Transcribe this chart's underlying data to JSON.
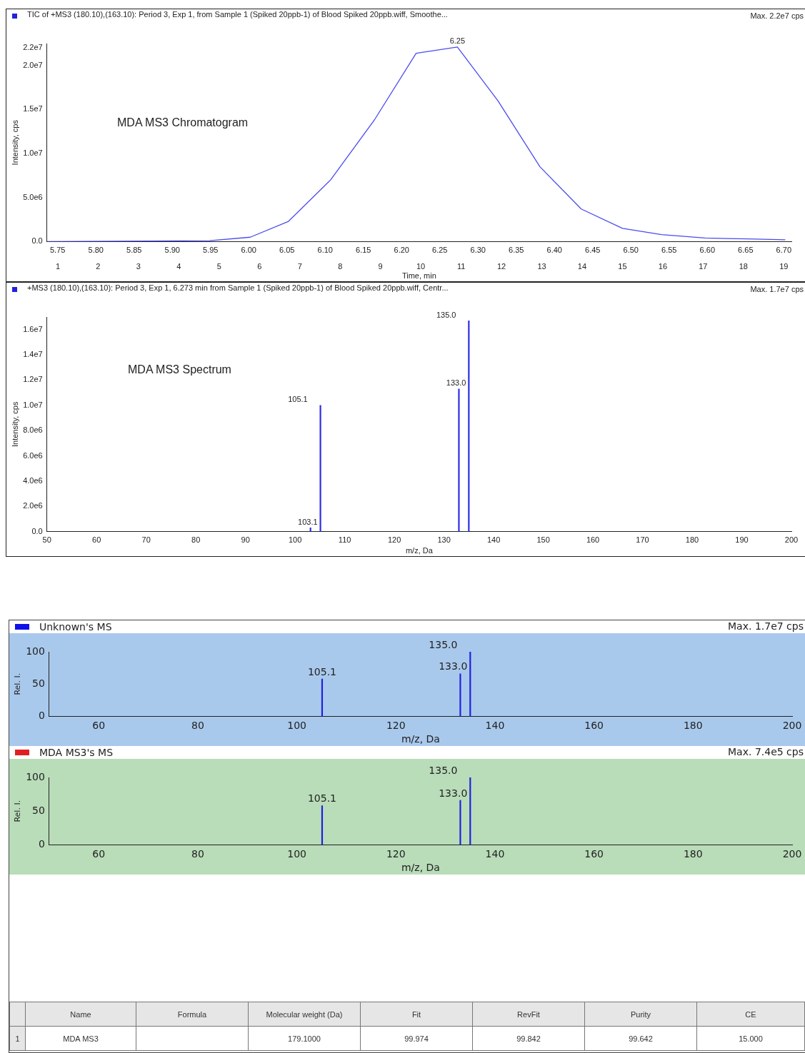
{
  "chart_data": [
    {
      "type": "line",
      "title": "TIC of +MS3 (180.10),(163.10): Period 3, Exp 1, from Sample 1 (Spiked 20ppb-1) of Blood Spiked 20ppb.wiff, Smoothe...",
      "xlabel": "Time, min",
      "ylabel": "Intensity, cps",
      "annotations": [
        "MDA MS3 Chromatogram",
        "Max. 2.2e7 cps",
        {
          "text": "6.25",
          "x": 6.273,
          "y": 22100000
        }
      ],
      "x": [
        5.736,
        5.949,
        6.002,
        6.052,
        6.107,
        6.165,
        6.219,
        6.273,
        6.326,
        6.381,
        6.435,
        6.489,
        6.54,
        6.597,
        6.653,
        6.702
      ],
      "values": [
        0,
        100000,
        500000,
        2300000,
        7000000,
        13900000,
        21400000,
        22100000,
        16000000,
        8500000,
        3700000,
        1500000,
        800000,
        400000,
        300000,
        200000
      ],
      "color": "#4b4bf0",
      "marker": "none",
      "xlim": [
        5.736,
        6.71
      ],
      "xticks": [
        {
          "value": 5.75,
          "label": "5.75"
        },
        {
          "value": 5.8,
          "label": "5.80"
        },
        {
          "value": 5.85,
          "label": "5.85"
        },
        {
          "value": 5.9,
          "label": "5.90"
        },
        {
          "value": 5.95,
          "label": "5.95"
        },
        {
          "value": 6.0,
          "label": "6.00"
        },
        {
          "value": 6.05,
          "label": "6.05"
        },
        {
          "value": 6.1,
          "label": "6.10"
        },
        {
          "value": 6.15,
          "label": "6.15"
        },
        {
          "value": 6.2,
          "label": "6.20"
        },
        {
          "value": 6.25,
          "label": "6.25"
        },
        {
          "value": 6.3,
          "label": "6.30"
        },
        {
          "value": 6.35,
          "label": "6.35"
        },
        {
          "value": 6.4,
          "label": "6.40"
        },
        {
          "value": 6.45,
          "label": "6.45"
        },
        {
          "value": 6.5,
          "label": "6.50"
        },
        {
          "value": 6.55,
          "label": "6.55"
        },
        {
          "value": 6.6,
          "label": "6.60"
        },
        {
          "value": 6.65,
          "label": "6.65"
        },
        {
          "value": 6.7,
          "label": "6.70"
        }
      ],
      "x2lim": [
        0.73,
        19.19
      ],
      "x2ticks": [
        1,
        2,
        3,
        4,
        5,
        6,
        7,
        8,
        9,
        10,
        11,
        12,
        13,
        14,
        15,
        16,
        17,
        18,
        19
      ],
      "ylim": [
        0,
        22500000
      ],
      "yticks": [
        {
          "value": 0,
          "label": "0.0"
        },
        {
          "value": 5000000,
          "label": "5.0e6"
        },
        {
          "value": 10000000,
          "label": "1.0e7"
        },
        {
          "value": 15000000,
          "label": "1.5e7"
        },
        {
          "value": 20000000,
          "label": "2.0e7"
        },
        {
          "value": 22000000,
          "label": "2.2e7"
        }
      ]
    },
    {
      "type": "bar",
      "title": "+MS3 (180.10),(163.10): Period 3, Exp 1, 6.273 min from Sample 1 (Spiked 20ppb-1) of Blood Spiked 20ppb.wiff, Centr...",
      "xlabel": "m/z, Da",
      "ylabel": "Intensity, cps",
      "annotations": [
        "MDA MS3 Spectrum",
        "Max. 1.7e7 cps",
        {
          "text": "103.1",
          "x": 103.1,
          "y": 300000
        },
        {
          "text": "105.1",
          "x": 105.1,
          "y": 10000000
        },
        {
          "text": "133.0",
          "x": 133.0,
          "y": 11300000
        },
        {
          "text": "135.0",
          "x": 135.0,
          "y": 16700000
        }
      ],
      "x": [
        103.1,
        105.1,
        133.0,
        135.0
      ],
      "values": [
        300000,
        10000000,
        11300000,
        16700000
      ],
      "color": "#2a2ae8",
      "xlim": [
        50,
        200
      ],
      "xticks": [
        50,
        60,
        70,
        80,
        90,
        100,
        110,
        120,
        130,
        140,
        150,
        160,
        170,
        180,
        190,
        200
      ],
      "ylim": [
        0,
        17000000
      ],
      "yticks": [
        {
          "value": 0,
          "label": "0.0"
        },
        {
          "value": 2000000,
          "label": "2.0e6"
        },
        {
          "value": 4000000,
          "label": "4.0e6"
        },
        {
          "value": 6000000,
          "label": "6.0e6"
        },
        {
          "value": 8000000,
          "label": "8.0e6"
        },
        {
          "value": 10000000,
          "label": "1.0e7"
        },
        {
          "value": 12000000,
          "label": "1.2e7"
        },
        {
          "value": 14000000,
          "label": "1.4e7"
        },
        {
          "value": 16000000,
          "label": "1.6e7"
        }
      ]
    },
    {
      "type": "bar",
      "title": "Unknown's MS",
      "xlabel": "m/z, Da",
      "ylabel": "Rel. I.",
      "annotations": [
        "Max. 1.7e7 cps",
        {
          "text": "105.1",
          "x": 105.1,
          "y": 58
        },
        {
          "text": "133.0",
          "x": 133.0,
          "y": 66
        },
        {
          "text": "135.0",
          "x": 135.0,
          "y": 100
        }
      ],
      "x": [
        105.1,
        133.0,
        135.0
      ],
      "values": [
        58,
        66,
        100
      ],
      "color": "#1f1fe0",
      "xlim": [
        50,
        200
      ],
      "xticks": [
        60,
        80,
        100,
        120,
        140,
        160,
        180,
        200
      ],
      "ylim": [
        0,
        100
      ],
      "yticks": [
        0,
        50,
        100
      ]
    },
    {
      "type": "bar",
      "title": "MDA MS3's MS",
      "xlabel": "m/z, Da",
      "ylabel": "Rel. I.",
      "annotations": [
        "Max. 7.4e5 cps",
        {
          "text": "105.1",
          "x": 105.1,
          "y": 58
        },
        {
          "text": "133.0",
          "x": 133.0,
          "y": 66
        },
        {
          "text": "135.0",
          "x": 135.0,
          "y": 100
        }
      ],
      "x": [
        105.1,
        133.0,
        135.0
      ],
      "values": [
        58,
        66,
        100
      ],
      "color": "#1f1fe0",
      "xlim": [
        50,
        200
      ],
      "xticks": [
        60,
        80,
        100,
        120,
        140,
        160,
        180,
        200
      ],
      "ylim": [
        0,
        100
      ],
      "yticks": [
        0,
        50,
        100
      ]
    },
    {
      "type": "other",
      "annotations": [
        "Name",
        "Formula",
        "Molecular weight (Da)",
        "Fit",
        "RevFit",
        "Purity",
        "CE",
        "1",
        "MDA MS3",
        "179.1000",
        "99.974",
        "99.842",
        "99.642",
        "15.000"
      ]
    }
  ]
}
